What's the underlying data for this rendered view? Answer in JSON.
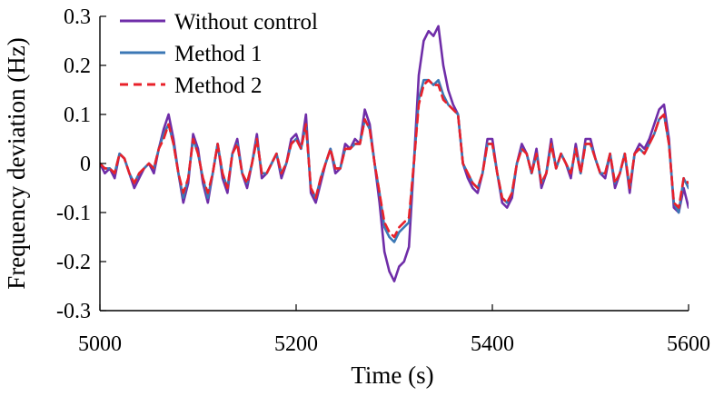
{
  "chart_data": {
    "type": "line",
    "title": "",
    "xlabel": "Time (s)",
    "ylabel": "Frequency deviation (Hz)",
    "xlim": [
      5000,
      5600
    ],
    "ylim": [
      -0.3,
      0.3
    ],
    "xticks": [
      5000,
      5200,
      5400,
      5600
    ],
    "xtick_labels": [
      "5000",
      "5200",
      "5400",
      "5600"
    ],
    "yticks": [
      0.3,
      0.2,
      0.1,
      0,
      -0.1,
      -0.2,
      -0.3
    ],
    "ytick_labels": [
      "0.3",
      "0.2",
      "0.1",
      "0",
      "-0.1",
      "-0.2",
      "-0.3"
    ],
    "grid": false,
    "legend_position": "top-left",
    "series": [
      {
        "name": "Without control",
        "color": "#6f2da8",
        "style": "solid",
        "x": [
          5000,
          5005,
          5010,
          5015,
          5020,
          5025,
          5030,
          5035,
          5040,
          5045,
          5050,
          5055,
          5060,
          5065,
          5070,
          5075,
          5080,
          5085,
          5090,
          5095,
          5100,
          5105,
          5110,
          5115,
          5120,
          5125,
          5130,
          5135,
          5140,
          5145,
          5150,
          5155,
          5160,
          5165,
          5170,
          5175,
          5180,
          5185,
          5190,
          5195,
          5200,
          5205,
          5210,
          5215,
          5220,
          5225,
          5230,
          5235,
          5240,
          5245,
          5250,
          5255,
          5260,
          5265,
          5270,
          5275,
          5280,
          5285,
          5290,
          5295,
          5300,
          5305,
          5310,
          5315,
          5320,
          5325,
          5330,
          5335,
          5340,
          5345,
          5350,
          5355,
          5360,
          5365,
          5370,
          5375,
          5380,
          5385,
          5390,
          5395,
          5400,
          5405,
          5410,
          5415,
          5420,
          5425,
          5430,
          5435,
          5440,
          5445,
          5450,
          5455,
          5460,
          5465,
          5470,
          5475,
          5480,
          5485,
          5490,
          5495,
          5500,
          5505,
          5510,
          5515,
          5520,
          5525,
          5530,
          5535,
          5540,
          5545,
          5550,
          5555,
          5560,
          5565,
          5570,
          5575,
          5580,
          5585,
          5590,
          5595,
          5600
        ],
        "values": [
          0.0,
          -0.02,
          -0.01,
          -0.03,
          0.02,
          0.01,
          -0.02,
          -0.05,
          -0.03,
          -0.01,
          0.0,
          -0.02,
          0.03,
          0.07,
          0.1,
          0.05,
          -0.02,
          -0.08,
          -0.04,
          0.06,
          0.03,
          -0.04,
          -0.08,
          -0.02,
          0.04,
          -0.03,
          -0.06,
          0.02,
          0.05,
          -0.02,
          -0.05,
          0.0,
          0.06,
          -0.03,
          -0.02,
          0.0,
          0.02,
          -0.03,
          0.0,
          0.05,
          0.06,
          0.03,
          0.1,
          -0.06,
          -0.08,
          -0.04,
          0.0,
          0.03,
          -0.02,
          -0.01,
          0.04,
          0.03,
          0.05,
          0.04,
          0.11,
          0.08,
          0.0,
          -0.08,
          -0.18,
          -0.22,
          -0.24,
          -0.21,
          -0.2,
          -0.17,
          0.0,
          0.18,
          0.25,
          0.27,
          0.26,
          0.28,
          0.2,
          0.15,
          0.12,
          0.1,
          0.0,
          -0.03,
          -0.05,
          -0.06,
          -0.02,
          0.05,
          0.05,
          -0.02,
          -0.08,
          -0.09,
          -0.07,
          0.0,
          0.04,
          0.02,
          -0.02,
          0.03,
          -0.05,
          -0.02,
          0.05,
          -0.01,
          0.02,
          0.0,
          -0.03,
          0.04,
          -0.02,
          0.05,
          0.05,
          0.01,
          -0.02,
          -0.03,
          0.02,
          -0.05,
          -0.02,
          0.02,
          -0.06,
          0.02,
          0.04,
          0.03,
          0.05,
          0.08,
          0.11,
          0.12,
          0.05,
          -0.09,
          -0.1,
          -0.05,
          -0.09
        ]
      },
      {
        "name": "Method 1",
        "color": "#3c78b5",
        "style": "solid",
        "x": [
          5000,
          5005,
          5010,
          5015,
          5020,
          5025,
          5030,
          5035,
          5040,
          5045,
          5050,
          5055,
          5060,
          5065,
          5070,
          5075,
          5080,
          5085,
          5090,
          5095,
          5100,
          5105,
          5110,
          5115,
          5120,
          5125,
          5130,
          5135,
          5140,
          5145,
          5150,
          5155,
          5160,
          5165,
          5170,
          5175,
          5180,
          5185,
          5190,
          5195,
          5200,
          5205,
          5210,
          5215,
          5220,
          5225,
          5230,
          5235,
          5240,
          5245,
          5250,
          5255,
          5260,
          5265,
          5270,
          5275,
          5280,
          5285,
          5290,
          5295,
          5300,
          5305,
          5310,
          5315,
          5320,
          5325,
          5330,
          5335,
          5340,
          5345,
          5350,
          5355,
          5360,
          5365,
          5370,
          5375,
          5380,
          5385,
          5390,
          5395,
          5400,
          5405,
          5410,
          5415,
          5420,
          5425,
          5430,
          5435,
          5440,
          5445,
          5450,
          5455,
          5460,
          5465,
          5470,
          5475,
          5480,
          5485,
          5490,
          5495,
          5500,
          5505,
          5510,
          5515,
          5520,
          5525,
          5530,
          5535,
          5540,
          5545,
          5550,
          5555,
          5560,
          5565,
          5570,
          5575,
          5580,
          5585,
          5590,
          5595,
          5600
        ],
        "values": [
          0.0,
          -0.01,
          -0.01,
          -0.02,
          0.02,
          0.01,
          -0.02,
          -0.04,
          -0.02,
          -0.01,
          0.0,
          -0.01,
          0.03,
          0.06,
          0.08,
          0.04,
          -0.02,
          -0.07,
          -0.03,
          0.05,
          0.02,
          -0.03,
          -0.07,
          -0.02,
          0.04,
          -0.02,
          -0.05,
          0.02,
          0.04,
          -0.02,
          -0.04,
          0.0,
          0.05,
          -0.02,
          -0.02,
          0.0,
          0.02,
          -0.02,
          0.0,
          0.04,
          0.05,
          0.03,
          0.08,
          -0.05,
          -0.07,
          -0.03,
          0.0,
          0.03,
          -0.01,
          -0.01,
          0.03,
          0.03,
          0.04,
          0.04,
          0.09,
          0.07,
          0.0,
          -0.06,
          -0.13,
          -0.15,
          -0.16,
          -0.14,
          -0.13,
          -0.12,
          0.0,
          0.13,
          0.17,
          0.17,
          0.16,
          0.17,
          0.14,
          0.12,
          0.11,
          0.1,
          0.0,
          -0.02,
          -0.04,
          -0.05,
          -0.02,
          0.04,
          0.04,
          -0.02,
          -0.07,
          -0.08,
          -0.06,
          0.0,
          0.03,
          0.02,
          -0.02,
          0.02,
          -0.04,
          -0.02,
          0.04,
          -0.01,
          0.02,
          0.0,
          -0.02,
          0.03,
          -0.02,
          0.04,
          0.04,
          0.01,
          -0.02,
          -0.02,
          0.02,
          -0.04,
          -0.02,
          0.02,
          -0.05,
          0.02,
          0.03,
          0.02,
          0.04,
          0.06,
          0.09,
          0.1,
          0.04,
          -0.08,
          -0.1,
          -0.03,
          -0.05
        ]
      },
      {
        "name": "Method 2",
        "color": "#e8212a",
        "style": "dashed",
        "x": [
          5000,
          5005,
          5010,
          5015,
          5020,
          5025,
          5030,
          5035,
          5040,
          5045,
          5050,
          5055,
          5060,
          5065,
          5070,
          5075,
          5080,
          5085,
          5090,
          5095,
          5100,
          5105,
          5110,
          5115,
          5120,
          5125,
          5130,
          5135,
          5140,
          5145,
          5150,
          5155,
          5160,
          5165,
          5170,
          5175,
          5180,
          5185,
          5190,
          5195,
          5200,
          5205,
          5210,
          5215,
          5220,
          5225,
          5230,
          5235,
          5240,
          5245,
          5250,
          5255,
          5260,
          5265,
          5270,
          5275,
          5280,
          5285,
          5290,
          5295,
          5300,
          5305,
          5310,
          5315,
          5320,
          5325,
          5330,
          5335,
          5340,
          5345,
          5350,
          5355,
          5360,
          5365,
          5370,
          5375,
          5380,
          5385,
          5390,
          5395,
          5400,
          5405,
          5410,
          5415,
          5420,
          5425,
          5430,
          5435,
          5440,
          5445,
          5450,
          5455,
          5460,
          5465,
          5470,
          5475,
          5480,
          5485,
          5490,
          5495,
          5500,
          5505,
          5510,
          5515,
          5520,
          5525,
          5530,
          5535,
          5540,
          5545,
          5550,
          5555,
          5560,
          5565,
          5570,
          5575,
          5580,
          5585,
          5590,
          5595,
          5600
        ],
        "values": [
          0.0,
          -0.01,
          -0.01,
          -0.02,
          0.02,
          0.01,
          -0.02,
          -0.04,
          -0.02,
          -0.01,
          0.0,
          -0.01,
          0.03,
          0.05,
          0.08,
          0.04,
          -0.02,
          -0.06,
          -0.03,
          0.05,
          0.02,
          -0.03,
          -0.06,
          -0.02,
          0.04,
          -0.02,
          -0.05,
          0.02,
          0.04,
          -0.02,
          -0.04,
          0.0,
          0.05,
          -0.02,
          -0.02,
          0.0,
          0.02,
          -0.02,
          0.0,
          0.04,
          0.05,
          0.03,
          0.08,
          -0.05,
          -0.07,
          -0.03,
          0.0,
          0.03,
          -0.01,
          -0.01,
          0.03,
          0.03,
          0.04,
          0.04,
          0.09,
          0.07,
          0.0,
          -0.06,
          -0.12,
          -0.14,
          -0.15,
          -0.13,
          -0.12,
          -0.11,
          0.0,
          0.12,
          0.16,
          0.17,
          0.16,
          0.16,
          0.13,
          0.12,
          0.11,
          0.1,
          0.0,
          -0.02,
          -0.04,
          -0.05,
          -0.02,
          0.04,
          0.04,
          -0.02,
          -0.07,
          -0.08,
          -0.06,
          0.0,
          0.03,
          0.02,
          -0.02,
          0.02,
          -0.04,
          -0.02,
          0.04,
          -0.01,
          0.02,
          0.0,
          -0.02,
          0.03,
          -0.02,
          0.04,
          0.04,
          0.01,
          -0.02,
          -0.02,
          0.02,
          -0.04,
          -0.02,
          0.02,
          -0.05,
          0.02,
          0.03,
          0.02,
          0.04,
          0.06,
          0.09,
          0.1,
          0.04,
          -0.08,
          -0.09,
          -0.03,
          -0.04
        ]
      }
    ]
  }
}
